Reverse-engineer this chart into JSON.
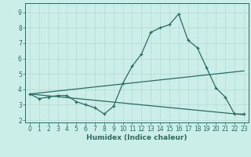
{
  "title": "",
  "xlabel": "Humidex (Indice chaleur)",
  "ylabel": "",
  "background_color": "#cceee8",
  "grid_color": "#b8ddd8",
  "line_color": "#2a6b63",
  "xlim": [
    -0.5,
    23.5
  ],
  "ylim": [
    1.85,
    9.6
  ],
  "yticks": [
    2,
    3,
    4,
    5,
    6,
    7,
    8,
    9
  ],
  "xticks": [
    0,
    1,
    2,
    3,
    4,
    5,
    6,
    7,
    8,
    9,
    10,
    11,
    12,
    13,
    14,
    15,
    16,
    17,
    18,
    19,
    20,
    21,
    22,
    23
  ],
  "line1_x": [
    0,
    1,
    2,
    3,
    4,
    5,
    6,
    7,
    8,
    9,
    10,
    11,
    12,
    13,
    14,
    15,
    16,
    17,
    18,
    19,
    20,
    21,
    22,
    23
  ],
  "line1_y": [
    3.7,
    3.4,
    3.5,
    3.6,
    3.6,
    3.2,
    3.0,
    2.8,
    2.4,
    2.9,
    4.4,
    5.5,
    6.3,
    7.7,
    8.0,
    8.2,
    8.9,
    7.2,
    6.7,
    5.4,
    4.1,
    3.5,
    2.4,
    2.4
  ],
  "line2_x": [
    0,
    23
  ],
  "line2_y": [
    3.7,
    2.35
  ],
  "line3_x": [
    0,
    23
  ],
  "line3_y": [
    3.7,
    5.2
  ],
  "fontsize_label": 6.5,
  "fontsize_tick": 5.5,
  "marker_size": 3.0,
  "line_width": 0.9
}
